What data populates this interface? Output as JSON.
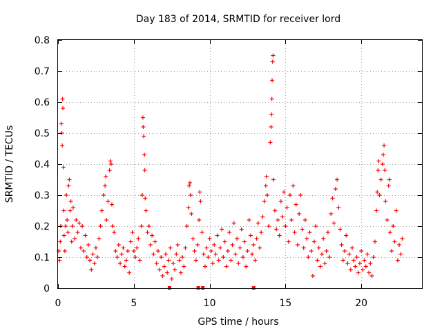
{
  "chart_data": {
    "type": "scatter",
    "title": "Day 183 of 2014, SRMTID for receiver lord",
    "xlabel": "GPS time / hours",
    "ylabel": "SRMTID / TECUs",
    "xlim": [
      0,
      24
    ],
    "ylim": [
      0,
      0.8
    ],
    "xticks": [
      0,
      5,
      10,
      15,
      20
    ],
    "xtick_labels": [
      "0",
      "5",
      "10",
      "15",
      "20"
    ],
    "yticks": [
      0,
      0.1,
      0.2,
      0.3,
      0.4,
      0.5,
      0.6,
      0.7,
      0.8
    ],
    "ytick_labels": [
      "0",
      "0.1",
      "0.2",
      "0.3",
      "0.4",
      "0.5",
      "0.6",
      "0.7",
      "0.8"
    ],
    "grid": true,
    "marker": "+",
    "color": "#ff0000",
    "series": [
      {
        "name": "SRMTID",
        "points": [
          [
            0.05,
            0.12
          ],
          [
            0.1,
            0.09
          ],
          [
            0.15,
            0.15
          ],
          [
            0.18,
            0.2
          ],
          [
            0.22,
            0.53
          ],
          [
            0.25,
            0.5
          ],
          [
            0.28,
            0.46
          ],
          [
            0.3,
            0.61
          ],
          [
            0.32,
            0.58
          ],
          [
            0.35,
            0.39
          ],
          [
            0.38,
            0.25
          ],
          [
            0.4,
            0.17
          ],
          [
            0.45,
            0.12
          ],
          [
            0.5,
            0.2
          ],
          [
            0.55,
            0.3
          ],
          [
            0.6,
            0.22
          ],
          [
            0.65,
            0.18
          ],
          [
            0.7,
            0.33
          ],
          [
            0.75,
            0.35
          ],
          [
            0.8,
            0.25
          ],
          [
            0.85,
            0.28
          ],
          [
            0.9,
            0.15
          ],
          [
            0.95,
            0.2
          ],
          [
            1.0,
            0.26
          ],
          [
            1.1,
            0.16
          ],
          [
            1.2,
            0.22
          ],
          [
            1.3,
            0.18
          ],
          [
            1.4,
            0.21
          ],
          [
            1.5,
            0.13
          ],
          [
            1.6,
            0.2
          ],
          [
            1.7,
            0.12
          ],
          [
            1.8,
            0.17
          ],
          [
            1.9,
            0.1
          ],
          [
            2.0,
            0.14
          ],
          [
            2.1,
            0.09
          ],
          [
            2.2,
            0.06
          ],
          [
            2.3,
            0.11
          ],
          [
            2.4,
            0.08
          ],
          [
            2.5,
            0.13
          ],
          [
            2.6,
            0.1
          ],
          [
            2.7,
            0.16
          ],
          [
            2.8,
            0.2
          ],
          [
            2.9,
            0.25
          ],
          [
            3.0,
            0.3
          ],
          [
            3.1,
            0.33
          ],
          [
            3.15,
            0.36
          ],
          [
            3.2,
            0.22
          ],
          [
            3.3,
            0.28
          ],
          [
            3.4,
            0.38
          ],
          [
            3.45,
            0.41
          ],
          [
            3.5,
            0.4
          ],
          [
            3.55,
            0.27
          ],
          [
            3.6,
            0.2
          ],
          [
            3.7,
            0.18
          ],
          [
            3.8,
            0.12
          ],
          [
            3.9,
            0.1
          ],
          [
            4.0,
            0.14
          ],
          [
            4.1,
            0.08
          ],
          [
            4.2,
            0.11
          ],
          [
            4.3,
            0.13
          ],
          [
            4.4,
            0.07
          ],
          [
            4.5,
            0.09
          ],
          [
            4.6,
            0.12
          ],
          [
            4.7,
            0.05
          ],
          [
            4.8,
            0.15
          ],
          [
            4.9,
            0.18
          ],
          [
            5.0,
            0.12
          ],
          [
            5.1,
            0.1
          ],
          [
            5.2,
            0.13
          ],
          [
            5.3,
            0.16
          ],
          [
            5.4,
            0.09
          ],
          [
            5.5,
            0.2
          ],
          [
            5.55,
            0.3
          ],
          [
            5.6,
            0.55
          ],
          [
            5.62,
            0.52
          ],
          [
            5.65,
            0.49
          ],
          [
            5.7,
            0.43
          ],
          [
            5.72,
            0.38
          ],
          [
            5.75,
            0.29
          ],
          [
            5.8,
            0.25
          ],
          [
            5.9,
            0.18
          ],
          [
            6.0,
            0.2
          ],
          [
            6.1,
            0.14
          ],
          [
            6.2,
            0.17
          ],
          [
            6.3,
            0.11
          ],
          [
            6.4,
            0.15
          ],
          [
            6.5,
            0.08
          ],
          [
            6.6,
            0.12
          ],
          [
            6.7,
            0.06
          ],
          [
            6.8,
            0.1
          ],
          [
            6.9,
            0.04
          ],
          [
            7.0,
            0.07
          ],
          [
            7.1,
            0.11
          ],
          [
            7.2,
            0.05
          ],
          [
            7.3,
            0.09
          ],
          [
            7.4,
            0.13
          ],
          [
            7.5,
            0.03
          ],
          [
            7.6,
            0.08
          ],
          [
            7.7,
            0.06
          ],
          [
            7.8,
            0.11
          ],
          [
            7.9,
            0.14
          ],
          [
            8.0,
            0.09
          ],
          [
            8.1,
            0.05
          ],
          [
            8.2,
            0.1
          ],
          [
            8.3,
            0.07
          ],
          [
            8.4,
            0.13
          ],
          [
            8.5,
            0.2
          ],
          [
            8.6,
            0.26
          ],
          [
            8.65,
            0.33
          ],
          [
            8.7,
            0.34
          ],
          [
            8.75,
            0.3
          ],
          [
            8.8,
            0.24
          ],
          [
            8.9,
            0.16
          ],
          [
            9.0,
            0.12
          ],
          [
            9.1,
            0.09
          ],
          [
            9.2,
            0.14
          ],
          [
            9.3,
            0.22
          ],
          [
            9.35,
            0.31
          ],
          [
            9.4,
            0.28
          ],
          [
            9.5,
            0.18
          ],
          [
            9.6,
            0.11
          ],
          [
            9.7,
            0.07
          ],
          [
            9.8,
            0.13
          ],
          [
            9.9,
            0.1
          ],
          [
            10.0,
            0.16
          ],
          [
            10.1,
            0.12
          ],
          [
            10.2,
            0.08
          ],
          [
            10.3,
            0.14
          ],
          [
            10.4,
            0.11
          ],
          [
            10.5,
            0.17
          ],
          [
            10.6,
            0.09
          ],
          [
            10.7,
            0.13
          ],
          [
            10.8,
            0.19
          ],
          [
            10.9,
            0.1
          ],
          [
            11.0,
            0.15
          ],
          [
            11.1,
            0.07
          ],
          [
            11.2,
            0.12
          ],
          [
            11.3,
            0.18
          ],
          [
            11.4,
            0.09
          ],
          [
            11.5,
            0.14
          ],
          [
            11.6,
            0.21
          ],
          [
            11.7,
            0.11
          ],
          [
            11.8,
            0.16
          ],
          [
            11.9,
            0.08
          ],
          [
            12.0,
            0.13
          ],
          [
            12.1,
            0.19
          ],
          [
            12.2,
            0.1
          ],
          [
            12.3,
            0.15
          ],
          [
            12.4,
            0.07
          ],
          [
            12.5,
            0.12
          ],
          [
            12.6,
            0.22
          ],
          [
            12.7,
            0.17
          ],
          [
            12.8,
            0.11
          ],
          [
            12.9,
            0.14
          ],
          [
            13.0,
            0.09
          ],
          [
            13.1,
            0.16
          ],
          [
            13.2,
            0.21
          ],
          [
            13.3,
            0.13
          ],
          [
            13.4,
            0.18
          ],
          [
            13.5,
            0.23
          ],
          [
            13.6,
            0.28
          ],
          [
            13.7,
            0.33
          ],
          [
            13.75,
            0.36
          ],
          [
            13.8,
            0.3
          ],
          [
            13.9,
            0.2
          ],
          [
            14.0,
            0.47
          ],
          [
            14.05,
            0.52
          ],
          [
            14.08,
            0.56
          ],
          [
            14.1,
            0.61
          ],
          [
            14.12,
            0.67
          ],
          [
            14.15,
            0.73
          ],
          [
            14.18,
            0.75
          ],
          [
            14.2,
            0.35
          ],
          [
            14.3,
            0.25
          ],
          [
            14.4,
            0.19
          ],
          [
            14.5,
            0.22
          ],
          [
            14.6,
            0.17
          ],
          [
            14.7,
            0.28
          ],
          [
            14.8,
            0.23
          ],
          [
            14.9,
            0.31
          ],
          [
            15.0,
            0.2
          ],
          [
            15.1,
            0.26
          ],
          [
            15.2,
            0.15
          ],
          [
            15.3,
            0.3
          ],
          [
            15.4,
            0.22
          ],
          [
            15.5,
            0.33
          ],
          [
            15.6,
            0.18
          ],
          [
            15.7,
            0.27
          ],
          [
            15.8,
            0.14
          ],
          [
            15.9,
            0.24
          ],
          [
            16.0,
            0.3
          ],
          [
            16.1,
            0.19
          ],
          [
            16.2,
            0.13
          ],
          [
            16.3,
            0.22
          ],
          [
            16.4,
            0.16
          ],
          [
            16.5,
            0.1
          ],
          [
            16.6,
            0.18
          ],
          [
            16.7,
            0.12
          ],
          [
            16.8,
            0.04
          ],
          [
            16.9,
            0.15
          ],
          [
            17.0,
            0.2
          ],
          [
            17.1,
            0.09
          ],
          [
            17.2,
            0.13
          ],
          [
            17.3,
            0.07
          ],
          [
            17.4,
            0.11
          ],
          [
            17.5,
            0.16
          ],
          [
            17.6,
            0.08
          ],
          [
            17.7,
            0.12
          ],
          [
            17.8,
            0.18
          ],
          [
            17.9,
            0.1
          ],
          [
            18.0,
            0.24
          ],
          [
            18.1,
            0.29
          ],
          [
            18.2,
            0.21
          ],
          [
            18.3,
            0.32
          ],
          [
            18.4,
            0.35
          ],
          [
            18.5,
            0.26
          ],
          [
            18.6,
            0.19
          ],
          [
            18.7,
            0.14
          ],
          [
            18.8,
            0.09
          ],
          [
            18.9,
            0.12
          ],
          [
            19.0,
            0.17
          ],
          [
            19.1,
            0.08
          ],
          [
            19.2,
            0.11
          ],
          [
            19.3,
            0.06
          ],
          [
            19.4,
            0.13
          ],
          [
            19.5,
            0.09
          ],
          [
            19.6,
            0.07
          ],
          [
            19.7,
            0.1
          ],
          [
            19.8,
            0.05
          ],
          [
            19.9,
            0.08
          ],
          [
            20.0,
            0.12
          ],
          [
            20.1,
            0.06
          ],
          [
            20.2,
            0.09
          ],
          [
            20.3,
            0.07
          ],
          [
            20.4,
            0.11
          ],
          [
            20.5,
            0.05
          ],
          [
            20.6,
            0.08
          ],
          [
            20.7,
            0.04
          ],
          [
            20.8,
            0.1
          ],
          [
            20.9,
            0.15
          ],
          [
            21.0,
            0.25
          ],
          [
            21.05,
            0.31
          ],
          [
            21.1,
            0.38
          ],
          [
            21.15,
            0.41
          ],
          [
            21.2,
            0.3
          ],
          [
            21.3,
            0.35
          ],
          [
            21.4,
            0.4
          ],
          [
            21.45,
            0.43
          ],
          [
            21.5,
            0.46
          ],
          [
            21.55,
            0.38
          ],
          [
            21.6,
            0.28
          ],
          [
            21.7,
            0.22
          ],
          [
            21.8,
            0.33
          ],
          [
            21.85,
            0.35
          ],
          [
            21.9,
            0.18
          ],
          [
            22.0,
            0.12
          ],
          [
            22.1,
            0.2
          ],
          [
            22.2,
            0.15
          ],
          [
            22.3,
            0.25
          ],
          [
            22.4,
            0.09
          ],
          [
            22.5,
            0.14
          ],
          [
            22.6,
            0.11
          ],
          [
            22.7,
            0.16
          ]
        ]
      }
    ],
    "missing_markers_x": [
      7.35,
      9.25,
      9.55,
      12.9
    ]
  }
}
